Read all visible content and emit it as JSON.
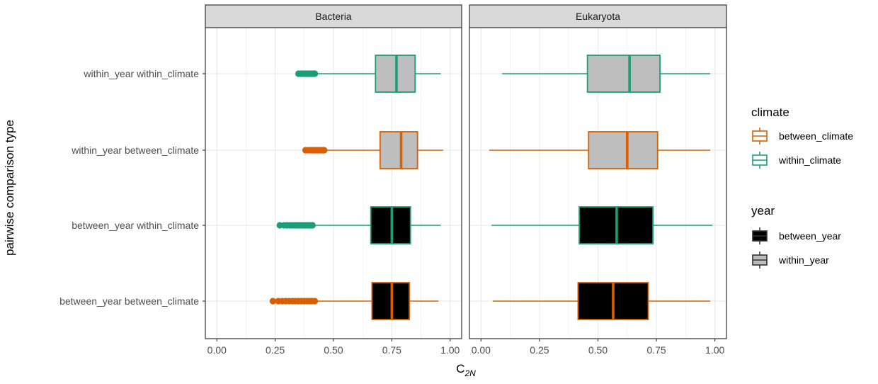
{
  "chart_data": {
    "type": "boxplot",
    "xlabel_main": "C",
    "xlabel_sub": "2N",
    "ylabel": "pairwise comparison type",
    "xlim": [
      0,
      1
    ],
    "xticks": [
      "0.00",
      "0.25",
      "0.50",
      "0.75",
      "1.00"
    ],
    "xtick_values": [
      0,
      0.25,
      0.5,
      0.75,
      1.0
    ],
    "grid": true,
    "legend_position": "right",
    "categories": [
      "within_year within_climate",
      "within_year between_climate",
      "between_year within_climate",
      "between_year between_climate"
    ],
    "category_meta": [
      {
        "climate": "within_climate",
        "year": "within_year"
      },
      {
        "climate": "between_climate",
        "year": "within_year"
      },
      {
        "climate": "within_climate",
        "year": "between_year"
      },
      {
        "climate": "between_climate",
        "year": "between_year"
      }
    ],
    "facets": [
      {
        "name": "Bacteria",
        "boxes": [
          {
            "category": "within_year within_climate",
            "min": 0.42,
            "q1": 0.68,
            "median": 0.77,
            "q3": 0.85,
            "max": 0.96,
            "outlier_range": [
              0.35,
              0.42
            ]
          },
          {
            "category": "within_year between_climate",
            "min": 0.46,
            "q1": 0.7,
            "median": 0.79,
            "q3": 0.86,
            "max": 0.97,
            "outlier_range": [
              0.38,
              0.46
            ]
          },
          {
            "category": "between_year within_climate",
            "min": 0.41,
            "q1": 0.66,
            "median": 0.75,
            "q3": 0.83,
            "max": 0.96,
            "outlier_range": [
              0.27,
              0.41
            ]
          },
          {
            "category": "between_year between_climate",
            "min": 0.42,
            "q1": 0.665,
            "median": 0.75,
            "q3": 0.825,
            "max": 0.95,
            "outlier_range": [
              0.24,
              0.42
            ]
          }
        ]
      },
      {
        "name": "Eukaryota",
        "boxes": [
          {
            "category": "within_year within_climate",
            "min": 0.09,
            "q1": 0.455,
            "median": 0.635,
            "q3": 0.765,
            "max": 0.98
          },
          {
            "category": "within_year between_climate",
            "min": 0.035,
            "q1": 0.46,
            "median": 0.625,
            "q3": 0.755,
            "max": 0.98
          },
          {
            "category": "between_year within_climate",
            "min": 0.045,
            "q1": 0.42,
            "median": 0.58,
            "q3": 0.735,
            "max": 0.99
          },
          {
            "category": "between_year between_climate",
            "min": 0.05,
            "q1": 0.415,
            "median": 0.565,
            "q3": 0.715,
            "max": 0.98
          }
        ]
      }
    ],
    "legends": [
      {
        "title": "climate",
        "entries": [
          {
            "label": "between_climate",
            "color": "#d95f02"
          },
          {
            "label": "within_climate",
            "color": "#1b9e77"
          }
        ]
      },
      {
        "title": "year",
        "entries": [
          {
            "label": "between_year",
            "fill": "#000000"
          },
          {
            "label": "within_year",
            "fill": "#bebebe"
          }
        ]
      }
    ],
    "colors": {
      "between_climate": "#d95f02",
      "within_climate": "#1b9e77",
      "between_year": "#000000",
      "within_year": "#bebebe"
    }
  }
}
